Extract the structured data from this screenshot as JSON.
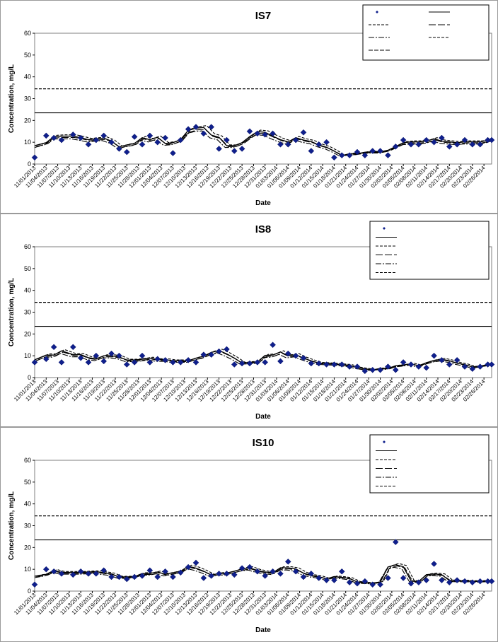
{
  "chart_data": [
    {
      "type": "line",
      "title": "IS7",
      "xlabel": "Date",
      "ylabel": "Concentration, mg/L",
      "ylim": [
        0,
        60
      ],
      "yticks": [
        0,
        10,
        20,
        30,
        40,
        50,
        60
      ],
      "grid": false,
      "legend_position": "top-right",
      "xtick_labels": [
        "11/01/2013",
        "11/04/2013",
        "11/07/2013",
        "11/10/2013",
        "11/13/2013",
        "11/16/2013",
        "11/19/2013",
        "11/22/2013",
        "11/25/2013",
        "11/28/2013",
        "12/01/2013",
        "12/04/2013",
        "12/07/2013",
        "12/10/2013",
        "12/13/2013",
        "12/16/2013",
        "12/19/2013",
        "12/22/2013",
        "12/25/2013",
        "12/28/2013",
        "12/31/2013",
        "01/03/2014",
        "01/06/2014",
        "01/09/2014",
        "01/12/2014",
        "01/15/2014",
        "01/18/2014",
        "01/21/2014",
        "01/24/2014",
        "01/27/2014",
        "01/30/2014",
        "02/02/2014",
        "02/05/2014",
        "02/08/2014",
        "02/11/2014",
        "02/14/2014",
        "02/17/2014",
        "02/20/2014",
        "02/23/2014",
        "02/26/2014"
      ],
      "x_days": [
        0,
        119
      ],
      "reference_lines": [
        23.5,
        34.5
      ],
      "series": [
        {
          "name": "IS7",
          "style": "marker",
          "x": [
            0,
            3,
            5,
            7,
            10,
            12,
            14,
            16,
            18,
            20,
            22,
            24,
            26,
            28,
            30,
            32,
            34,
            36,
            38,
            40,
            42,
            44,
            46,
            48,
            50,
            52,
            54,
            56,
            58,
            60,
            62,
            64,
            66,
            68,
            70,
            72,
            74,
            76,
            78,
            80,
            82,
            84,
            86,
            88,
            90,
            92,
            94,
            96,
            98,
            100,
            102,
            104,
            106,
            108,
            110,
            112,
            114,
            116,
            118,
            119
          ],
          "values": [
            3,
            13,
            12,
            11,
            13.5,
            12,
            9,
            11,
            13,
            10,
            7,
            5.5,
            12.5,
            9,
            13,
            10,
            12,
            5,
            11,
            16,
            17,
            14,
            17,
            7,
            11,
            6,
            7,
            15,
            14,
            13.5,
            14,
            9,
            9,
            11,
            14.5,
            6,
            9,
            10,
            3,
            4,
            4,
            5.5,
            4,
            6,
            6,
            4,
            8,
            11,
            9,
            9,
            11,
            10,
            12,
            8,
            9,
            11,
            9,
            9,
            11,
            11
          ]
        },
        {
          "name": "",
          "style": "line-solid",
          "values": []
        },
        {
          "name": "",
          "style": "line-dash-long",
          "values": []
        },
        {
          "name": "",
          "style": "line-dashdot",
          "values": []
        },
        {
          "name": "",
          "style": "line-dash",
          "values": []
        }
      ],
      "legend": [
        "",
        "",
        "",
        "",
        "",
        "",
        "",
        ""
      ]
    },
    {
      "type": "line",
      "title": "IS8",
      "xlabel": "Date",
      "ylabel": "Concentration, mg/L",
      "ylim": [
        0,
        60
      ],
      "yticks": [
        0,
        10,
        20,
        30,
        40,
        50,
        60
      ],
      "grid": false,
      "legend_position": "top-right",
      "xtick_labels": [
        "11/01/2013",
        "11/04/2013",
        "11/07/2013",
        "11/10/2013",
        "11/13/2013",
        "11/16/2013",
        "11/19/2013",
        "11/22/2013",
        "11/25/2013",
        "11/28/2013",
        "12/01/2013",
        "12/04/2013",
        "12/07/2013",
        "12/10/2013",
        "12/13/2013",
        "12/16/2013",
        "12/19/2013",
        "12/22/2013",
        "12/25/2013",
        "12/28/2013",
        "12/31/2013",
        "01/03/2014",
        "01/06/2014",
        "01/09/2014",
        "01/12/2014",
        "01/15/2014",
        "01/18/2014",
        "01/21/2014",
        "01/24/2014",
        "01/27/2014",
        "01/30/2014",
        "02/02/2014",
        "02/05/2014",
        "02/08/2014",
        "02/11/2014",
        "02/14/2014",
        "02/17/2014",
        "02/20/2014",
        "02/23/2014",
        "02/26/2014"
      ],
      "x_days": [
        0,
        119
      ],
      "reference_lines": [
        23.5,
        34.5
      ],
      "series": [
        {
          "name": "IS8",
          "style": "marker",
          "x": [
            0,
            3,
            5,
            7,
            10,
            12,
            14,
            16,
            18,
            20,
            22,
            24,
            26,
            28,
            30,
            32,
            34,
            36,
            38,
            40,
            42,
            44,
            46,
            48,
            50,
            52,
            54,
            56,
            58,
            60,
            62,
            64,
            66,
            68,
            70,
            72,
            74,
            76,
            78,
            80,
            82,
            84,
            86,
            88,
            90,
            92,
            94,
            96,
            98,
            100,
            102,
            104,
            106,
            108,
            110,
            112,
            114,
            116,
            118,
            119
          ],
          "values": [
            7,
            8.5,
            14,
            7,
            14,
            9,
            7,
            10,
            7.5,
            11,
            10,
            6,
            7,
            10,
            7,
            8.5,
            8,
            7,
            7,
            8,
            7,
            10.5,
            10.5,
            12,
            13,
            6,
            6.5,
            6.5,
            7,
            7,
            15,
            7.5,
            11,
            10,
            9,
            6.5,
            6.5,
            6,
            6,
            6,
            5,
            5,
            3,
            3.5,
            3.5,
            5,
            3.5,
            7,
            6,
            5,
            4.5,
            10,
            8,
            6,
            8,
            5,
            4,
            5,
            6,
            6
          ]
        },
        {
          "name": "",
          "style": "line-solid",
          "values": []
        },
        {
          "name": "",
          "style": "line-dash-long",
          "values": []
        },
        {
          "name": "",
          "style": "line-dashdot",
          "values": []
        },
        {
          "name": "",
          "style": "line-dash",
          "values": []
        }
      ],
      "legend": [
        "",
        "",
        "",
        "",
        "",
        "",
        "",
        ""
      ]
    },
    {
      "type": "line",
      "title": "IS10",
      "xlabel": "Date",
      "ylabel": "Concentration, mg/L",
      "ylim": [
        0,
        60
      ],
      "yticks": [
        0,
        10,
        20,
        30,
        40,
        50,
        60
      ],
      "grid": false,
      "legend_position": "top-right",
      "xtick_labels": [
        "11/01/2013",
        "11/04/2013",
        "11/07/2013",
        "11/10/2013",
        "11/13/2013",
        "11/16/2013",
        "11/19/2013",
        "11/22/2013",
        "11/25/2013",
        "11/28/2013",
        "12/01/2013",
        "12/04/2013",
        "12/07/2013",
        "12/10/2013",
        "12/13/2013",
        "12/16/2013",
        "12/19/2013",
        "12/22/2013",
        "12/25/2013",
        "12/28/2013",
        "12/31/2013",
        "01/03/2014",
        "01/06/2014",
        "01/09/2014",
        "01/12/2014",
        "01/15/2014",
        "01/18/2014",
        "01/21/2014",
        "01/24/2014",
        "01/27/2014",
        "01/30/2014",
        "02/02/2014",
        "02/05/2014",
        "02/08/2014",
        "02/11/2014",
        "02/14/2014",
        "02/17/2014",
        "02/20/2014",
        "02/23/2014",
        "02/26/2014"
      ],
      "x_days": [
        0,
        119
      ],
      "reference_lines": [
        23.5,
        34.5
      ],
      "series": [
        {
          "name": "IS10",
          "style": "marker",
          "x": [
            0,
            3,
            5,
            7,
            10,
            12,
            14,
            16,
            18,
            20,
            22,
            24,
            26,
            28,
            30,
            32,
            34,
            36,
            38,
            40,
            42,
            44,
            46,
            48,
            50,
            52,
            54,
            56,
            58,
            60,
            62,
            64,
            66,
            68,
            70,
            72,
            74,
            76,
            78,
            80,
            82,
            84,
            86,
            88,
            90,
            92,
            94,
            96,
            98,
            100,
            102,
            104,
            106,
            108,
            110,
            112,
            114,
            116,
            118,
            119
          ],
          "values": [
            3,
            10,
            9,
            8,
            7.5,
            9,
            8,
            8,
            9.5,
            6.5,
            6.5,
            5.5,
            6.5,
            7,
            9.5,
            6.5,
            9,
            6.5,
            8.5,
            11,
            13,
            6,
            7,
            8,
            8,
            7.5,
            10.5,
            11,
            9,
            7,
            9,
            8,
            13.5,
            9,
            6.5,
            8,
            6,
            5,
            5,
            9,
            4,
            3.5,
            4.5,
            3,
            3,
            6,
            22.5,
            6,
            3.5,
            4,
            5,
            12.5,
            5,
            4,
            5,
            4.5,
            4,
            4.5,
            4.5,
            4.5
          ]
        },
        {
          "name": "",
          "style": "line-solid",
          "values": []
        },
        {
          "name": "",
          "style": "line-dash-long",
          "values": []
        },
        {
          "name": "",
          "style": "line-dashdot",
          "values": []
        },
        {
          "name": "",
          "style": "line-dash",
          "values": []
        }
      ],
      "legend": [
        "",
        "",
        "",
        "",
        "",
        "",
        "",
        ""
      ]
    }
  ]
}
